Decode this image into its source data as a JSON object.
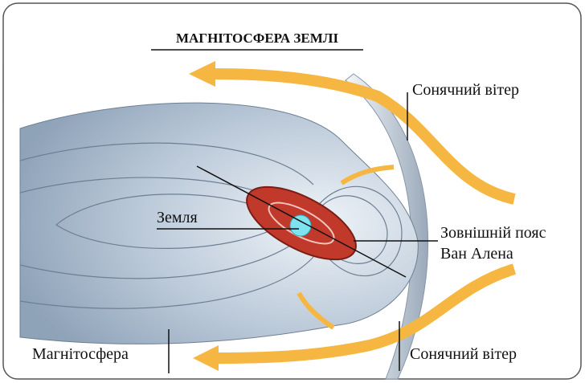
{
  "title": "МАГНІТОСФЕРА ЗЕМЛІ",
  "labels": {
    "solar_wind_top": "Сонячний вітер",
    "earth": "Земля",
    "van_allen": [
      "Зовнішній пояс",
      "Ван Алена"
    ],
    "magnetosphere": "Магнітосфера",
    "solar_wind_bottom": "Сонячний вітер"
  }
}
